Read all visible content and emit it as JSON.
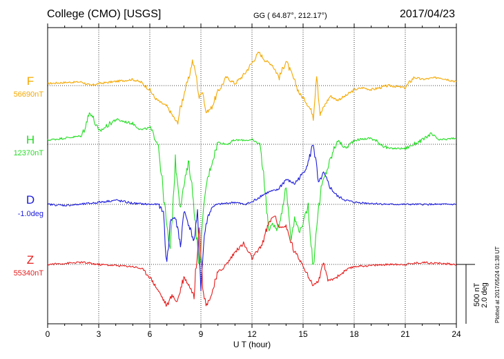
{
  "header": {
    "title": "College (CMO)  [USGS]",
    "coords": "GG ( 64.87°, 212.17°)",
    "date": "2017/04/23"
  },
  "side": {
    "scale_nt": "500 nT",
    "scale_deg": "2.0 deg",
    "plotted": "Plotted at 2017/05/24 01:38 UT"
  },
  "chart_data": {
    "type": "line",
    "title": "College (CMO)  [USGS]",
    "xlabel": "U T (hour)",
    "ylabel": "",
    "xlim": [
      0,
      24
    ],
    "xticks": [
      "0",
      "3",
      "6",
      "9",
      "12",
      "15",
      "18",
      "21",
      "24"
    ],
    "grid": true,
    "series": [
      {
        "name": "F",
        "baseline_label": "56690nT",
        "color": "#f5a800",
        "x": [
          0,
          1,
          2,
          2.5,
          3,
          4,
          5,
          5.5,
          6,
          6.3,
          6.6,
          7,
          7.3,
          7.6,
          8,
          8.3,
          8.5,
          8.7,
          8.9,
          9.1,
          9.3,
          9.6,
          10,
          10.5,
          11,
          11.5,
          12,
          12.4,
          12.8,
          13.2,
          13.6,
          14,
          14.4,
          14.8,
          15.2,
          15.6,
          15.8,
          16,
          16.3,
          16.6,
          17,
          17.5,
          18,
          18.5,
          19,
          20,
          21,
          21.5,
          22,
          23,
          24
        ],
        "y": [
          10,
          15,
          18,
          0,
          10,
          20,
          30,
          15,
          -20,
          -60,
          -80,
          -100,
          -140,
          -180,
          -40,
          40,
          120,
          60,
          -60,
          -20,
          -130,
          -110,
          -30,
          40,
          10,
          50,
          110,
          160,
          120,
          100,
          40,
          120,
          40,
          -40,
          -80,
          -140,
          70,
          -140,
          -90,
          -50,
          -70,
          -50,
          -20,
          -10,
          -20,
          0,
          -10,
          40,
          30,
          40,
          20
        ]
      },
      {
        "name": "H",
        "baseline_label": "12370nT",
        "color": "#22dd22",
        "x": [
          0,
          1,
          2,
          2.5,
          3,
          4,
          5,
          5.5,
          6,
          6.5,
          7,
          7.2,
          7.5,
          7.8,
          8,
          8.3,
          8.6,
          8.9,
          9.1,
          9.3,
          9.6,
          10,
          10.5,
          11,
          12,
          12.5,
          13,
          13.2,
          13.5,
          13.8,
          14,
          14.3,
          14.5,
          14.8,
          15,
          15.3,
          15.6,
          15.8,
          16.1,
          16.5,
          17,
          17.5,
          18,
          19,
          20,
          21,
          22,
          22.5,
          23,
          24
        ],
        "y": [
          20,
          30,
          40,
          160,
          60,
          120,
          100,
          70,
          80,
          0,
          -400,
          -520,
          -80,
          -300,
          -200,
          -80,
          -300,
          -600,
          -380,
          -200,
          -100,
          10,
          0,
          20,
          20,
          0,
          -420,
          -380,
          -420,
          -300,
          -200,
          -450,
          -360,
          -420,
          -380,
          -300,
          -600,
          -380,
          -200,
          -100,
          20,
          -20,
          20,
          30,
          -20,
          -20,
          20,
          50,
          20,
          30
        ]
      },
      {
        "name": "D",
        "baseline_label": "-1.0deg",
        "color": "#1a1adb",
        "x": [
          0,
          1,
          2,
          3,
          4,
          5,
          6,
          6.5,
          6.8,
          7,
          7.2,
          7.5,
          7.8,
          8,
          8.3,
          8.6,
          8.8,
          9,
          9.2,
          9.4,
          9.7,
          10,
          10.5,
          11,
          11.5,
          12,
          12.5,
          13,
          13.5,
          14,
          14.5,
          15,
          15.3,
          15.6,
          15.9,
          16.2,
          16.6,
          17,
          17.5,
          18,
          19,
          20,
          21,
          22,
          23,
          24
        ],
        "y": [
          0,
          -5,
          0,
          10,
          20,
          5,
          0,
          0,
          -40,
          -300,
          -80,
          -60,
          -200,
          -30,
          -100,
          -180,
          -50,
          -400,
          -150,
          -60,
          -10,
          0,
          5,
          10,
          0,
          10,
          40,
          60,
          70,
          120,
          100,
          150,
          200,
          300,
          100,
          150,
          80,
          40,
          20,
          10,
          5,
          0,
          0,
          0,
          0,
          0
        ]
      },
      {
        "name": "Z",
        "baseline_label": "55340nT",
        "color": "#e61c1c",
        "x": [
          0,
          1,
          2,
          3,
          4,
          5,
          5.5,
          6,
          6.3,
          6.6,
          7,
          7.3,
          7.6,
          8,
          8.3,
          8.6,
          8.9,
          9.1,
          9.3,
          9.6,
          10,
          10.5,
          11,
          11.5,
          12,
          12.5,
          13,
          13.3,
          13.6,
          14,
          14.5,
          15,
          15.3,
          15.6,
          15.9,
          16.2,
          16.5,
          17,
          17.5,
          18,
          19,
          20,
          21,
          22,
          23,
          24
        ],
        "y": [
          0,
          5,
          10,
          0,
          -5,
          -10,
          -20,
          -60,
          -100,
          -140,
          -200,
          -150,
          -180,
          -60,
          -100,
          -150,
          200,
          -100,
          -200,
          -150,
          -40,
          0,
          60,
          100,
          30,
          80,
          200,
          240,
          180,
          180,
          60,
          0,
          -60,
          -100,
          -80,
          0,
          -80,
          -60,
          -30,
          -10,
          -5,
          0,
          0,
          10,
          5,
          0
        ]
      }
    ],
    "scale": "500 nT / 2.0 deg"
  }
}
